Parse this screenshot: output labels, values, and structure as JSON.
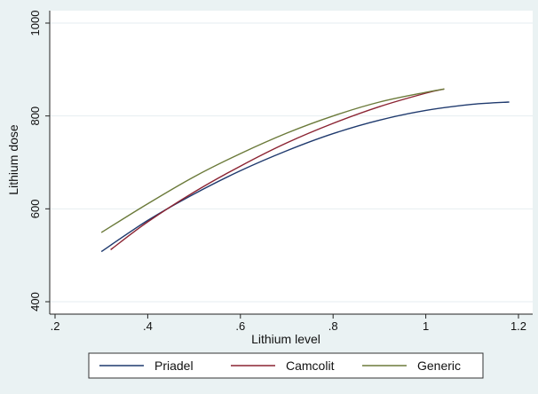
{
  "chart_data": {
    "type": "line",
    "title": "",
    "xlabel": "Lithium level",
    "ylabel": "Lithium dose",
    "xlim": [
      0.2,
      1.2
    ],
    "ylim": [
      400,
      1000
    ],
    "x_ticks": [
      0.2,
      0.4,
      0.6,
      0.8,
      1.0,
      1.2
    ],
    "x_tick_labels": [
      ".2",
      ".4",
      ".6",
      ".8",
      "1",
      "1.2"
    ],
    "y_ticks": [
      400,
      600,
      800,
      1000
    ],
    "y_tick_labels": [
      "400",
      "600",
      "800",
      "1000"
    ],
    "grid": true,
    "legend_position": "bottom",
    "series": [
      {
        "name": "Priadel",
        "color": "#1f3a6e",
        "x": [
          0.3,
          0.4,
          0.5,
          0.6,
          0.7,
          0.8,
          0.9,
          1.0,
          1.1,
          1.18
        ],
        "y": [
          508,
          575,
          632,
          682,
          725,
          762,
          791,
          812,
          825,
          830
        ]
      },
      {
        "name": "Camcolit",
        "color": "#8b2332",
        "x": [
          0.32,
          0.4,
          0.5,
          0.6,
          0.7,
          0.8,
          0.9,
          1.0,
          1.04
        ],
        "y": [
          512,
          572,
          636,
          692,
          742,
          784,
          820,
          849,
          858
        ]
      },
      {
        "name": "Generic",
        "color": "#6b7a3a",
        "x": [
          0.3,
          0.4,
          0.5,
          0.6,
          0.7,
          0.8,
          0.9,
          1.0,
          1.04
        ],
        "y": [
          549,
          611,
          669,
          719,
          763,
          800,
          830,
          851,
          858
        ]
      }
    ]
  }
}
